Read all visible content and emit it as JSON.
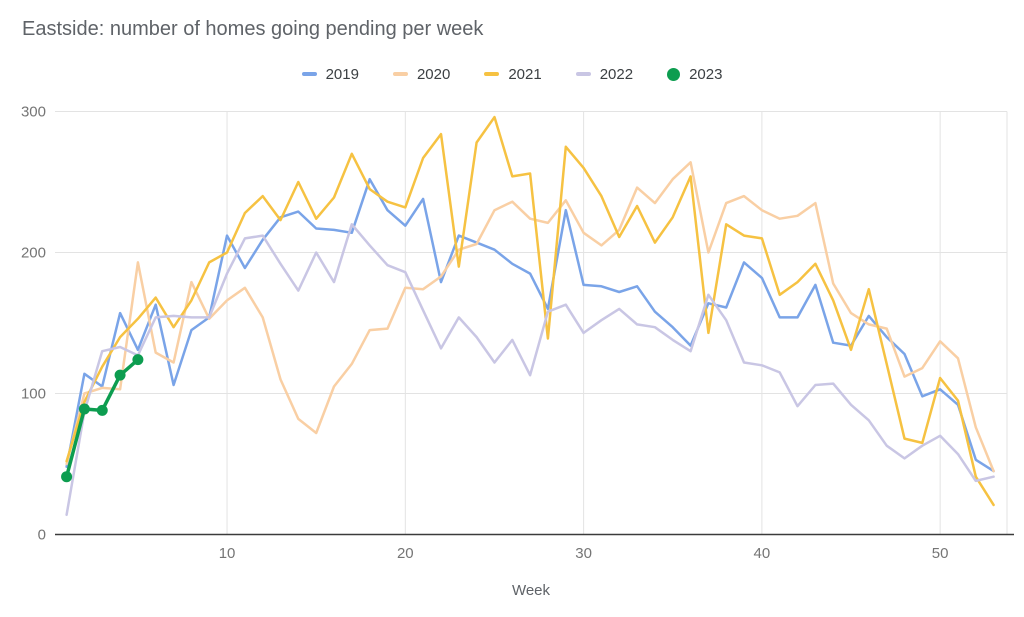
{
  "title": "Eastside: number of homes going pending per week",
  "legend": {
    "items": [
      {
        "label": "2019",
        "color": "#7AA4E8",
        "shape": "line"
      },
      {
        "label": "2020",
        "color": "#F9CFA4",
        "shape": "line"
      },
      {
        "label": "2021",
        "color": "#F6C242",
        "shape": "line"
      },
      {
        "label": "2022",
        "color": "#C9C6E4",
        "shape": "line"
      },
      {
        "label": "2023",
        "color": "#0D9D50",
        "shape": "circle"
      }
    ]
  },
  "chart_data": {
    "type": "line",
    "title": "Eastside: number of homes going pending per week",
    "xlabel": "Week",
    "ylabel": "",
    "xlim": [
      0.35,
      53.75
    ],
    "ylim": [
      0,
      300
    ],
    "x_ticks": [
      10,
      20,
      30,
      40,
      50
    ],
    "y_ticks": [
      0,
      100,
      200,
      300
    ],
    "grid": true,
    "legend_position": "top",
    "x_unit": "week number, series values are weekly counts for weeks 1-53",
    "series": [
      {
        "name": "2019",
        "color": "#7AA4E8",
        "marker": false,
        "values": [
          48,
          114,
          105,
          157,
          131,
          163,
          106,
          145,
          154,
          212,
          189,
          209,
          225,
          229,
          217,
          216,
          214,
          252,
          230,
          219,
          238,
          179,
          212,
          207,
          202,
          192,
          185,
          160,
          230,
          177,
          176,
          172,
          176,
          158,
          147,
          134,
          164,
          161,
          193,
          182,
          154,
          154,
          177,
          136,
          134,
          155,
          140,
          128,
          98,
          103,
          92,
          53,
          45
        ]
      },
      {
        "name": "2020",
        "color": "#F9CFA4",
        "marker": false,
        "values": [
          50,
          100,
          104,
          103,
          193,
          129,
          122,
          179,
          153,
          166,
          175,
          154,
          110,
          82,
          72,
          105,
          121,
          145,
          146,
          175,
          174,
          183,
          202,
          206,
          230,
          236,
          224,
          221,
          237,
          214,
          205,
          216,
          246,
          235,
          252,
          264,
          200,
          235,
          240,
          230,
          224,
          226,
          235,
          178,
          157,
          149,
          146,
          112,
          118,
          137,
          125,
          76,
          45
        ]
      },
      {
        "name": "2021",
        "color": "#F6C242",
        "marker": false,
        "values": [
          52,
          94,
          119,
          140,
          153,
          168,
          147,
          166,
          193,
          200,
          228,
          240,
          223,
          250,
          224,
          239,
          270,
          245,
          236,
          232,
          267,
          284,
          190,
          278,
          296,
          254,
          256,
          139,
          275,
          260,
          240,
          211,
          233,
          207,
          225,
          254,
          143,
          220,
          212,
          210,
          170,
          179,
          192,
          166,
          131,
          174,
          121,
          68,
          65,
          111,
          95,
          41,
          21
        ]
      },
      {
        "name": "2022",
        "color": "#C9C6E4",
        "marker": false,
        "values": [
          14,
          87,
          130,
          133,
          127,
          154,
          155,
          154,
          154,
          185,
          210,
          212,
          192,
          173,
          200,
          179,
          220,
          205,
          191,
          186,
          159,
          132,
          154,
          140,
          122,
          138,
          113,
          158,
          163,
          143,
          152,
          160,
          149,
          147,
          138,
          130,
          170,
          152,
          122,
          120,
          115,
          91,
          106,
          107,
          92,
          81,
          63,
          54,
          63,
          70,
          57,
          38,
          41
        ]
      },
      {
        "name": "2023",
        "color": "#0D9D50",
        "marker": true,
        "values": [
          41,
          89,
          88,
          113,
          124
        ]
      }
    ]
  },
  "colors": {
    "grid": "#e3e3e3",
    "axis_baseline": "#3b3b3b",
    "tick_label": "#757575"
  }
}
